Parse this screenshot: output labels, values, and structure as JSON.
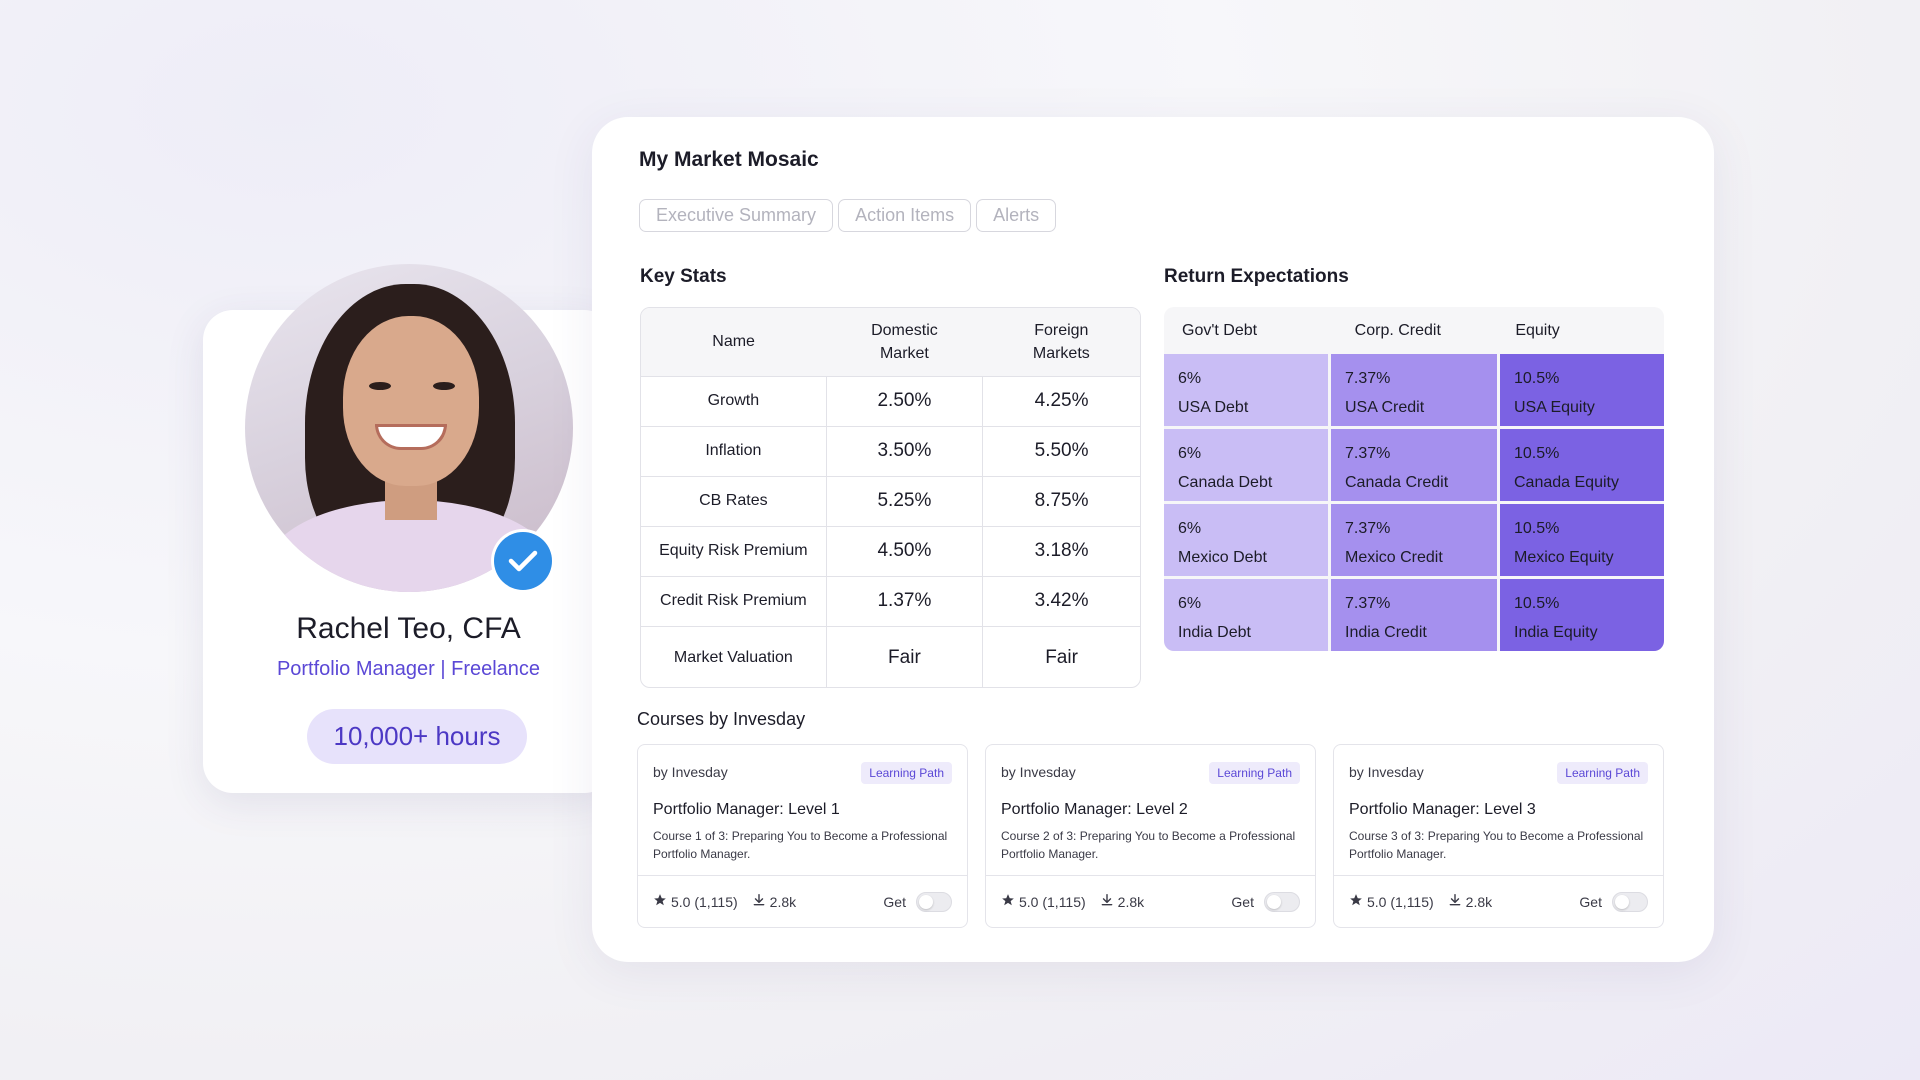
{
  "profile": {
    "name": "Rachel Teo, CFA",
    "role": "Portfolio Manager | Freelance",
    "hours": "10,000+ hours"
  },
  "dashboard": {
    "title": "My Market Mosaic",
    "tabs": [
      "Executive Summary",
      "Action Items",
      "Alerts"
    ],
    "key_stats": {
      "title": "Key Stats",
      "headers": [
        "Name",
        "Domestic\nMarket",
        "Foreign\nMarkets"
      ],
      "rows": [
        [
          "Growth",
          "2.50%",
          "4.25%"
        ],
        [
          "Inflation",
          "3.50%",
          "5.50%"
        ],
        [
          "CB Rates",
          "5.25%",
          "8.75%"
        ],
        [
          "Equity Risk Premium",
          "4.50%",
          "3.18%"
        ],
        [
          "Credit Risk Premium",
          "1.37%",
          "3.42%"
        ],
        [
          "Market Valuation",
          "Fair",
          "Fair"
        ]
      ]
    },
    "returns": {
      "title": "Return Expectations",
      "headers": [
        "Gov't Debt",
        "Corp. Credit",
        "Equity"
      ],
      "rows": [
        [
          {
            "pct": "6%",
            "label": "USA Debt"
          },
          {
            "pct": "7.37%",
            "label": "USA Credit"
          },
          {
            "pct": "10.5%",
            "label": "USA Equity"
          }
        ],
        [
          {
            "pct": "6%",
            "label": "Canada Debt"
          },
          {
            "pct": "7.37%",
            "label": "Canada Credit"
          },
          {
            "pct": "10.5%",
            "label": "Canada Equity"
          }
        ],
        [
          {
            "pct": "6%",
            "label": "Mexico Debt"
          },
          {
            "pct": "7.37%",
            "label": "Mexico Credit"
          },
          {
            "pct": "10.5%",
            "label": "Mexico Equity"
          }
        ],
        [
          {
            "pct": "6%",
            "label": "India Debt"
          },
          {
            "pct": "7.37%",
            "label": "India Credit"
          },
          {
            "pct": "10.5%",
            "label": "India Equity"
          }
        ]
      ],
      "colors": {
        "debt": "#c9bdf5",
        "credit": "#a590ee",
        "equity": "#7b62e3"
      }
    },
    "courses": {
      "title": "Courses by Invesday",
      "items": [
        {
          "by": "by Invesday",
          "tag": "Learning Path",
          "title": "Portfolio Manager: Level 1",
          "desc": "Course 1 of 3: Preparing You to Become a Professional Portfolio Manager.",
          "rating": "5.0 (1,115)",
          "downloads": "2.8k",
          "get": "Get"
        },
        {
          "by": "by Invesday",
          "tag": "Learning Path",
          "title": "Portfolio Manager: Level 2",
          "desc": "Course 2 of 3: Preparing You to Become a Professional Portfolio Manager.",
          "rating": "5.0 (1,115)",
          "downloads": "2.8k",
          "get": "Get"
        },
        {
          "by": "by Invesday",
          "tag": "Learning Path",
          "title": "Portfolio Manager: Level 3",
          "desc": "Course 3 of 3: Preparing You to Become a Professional Portfolio Manager.",
          "rating": "5.0 (1,115)",
          "downloads": "2.8k",
          "get": "Get"
        }
      ]
    }
  },
  "icons": {
    "verified": "verified-check-icon",
    "rating": "star-icon",
    "downloads": "download-icon"
  },
  "colors": {
    "accent": "#5b48d6",
    "verified": "#2f8ee6"
  }
}
